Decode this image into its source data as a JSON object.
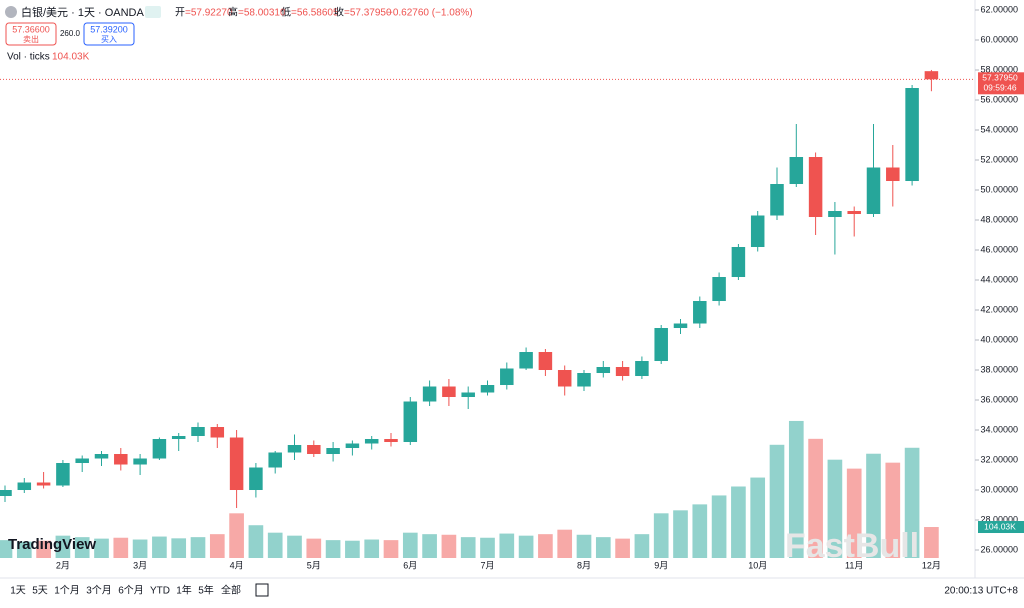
{
  "header": {
    "symbol": "白银/美元 · 1天 · OANDA",
    "ohlc": [
      {
        "label": "开",
        "value": "=57.92270"
      },
      {
        "label": "高",
        "value": "=58.00310"
      },
      {
        "label": "低",
        "value": "=56.58605"
      },
      {
        "label": "收",
        "value": "=57.37950"
      }
    ],
    "change": "−0.62760 (−1.08%)",
    "sell_price": "57.36600",
    "sell": "卖出",
    "spread": "260.0",
    "buy_price": "57.39200",
    "buy": "买入"
  },
  "chart_data": {
    "type": "candlestick",
    "categories": [
      null,
      null,
      null,
      "2月",
      null,
      null,
      null,
      "3月",
      null,
      null,
      null,
      null,
      "4月",
      null,
      null,
      null,
      "5月",
      null,
      null,
      null,
      null,
      "6月",
      null,
      null,
      null,
      "7月",
      null,
      null,
      null,
      null,
      "8月",
      null,
      null,
      null,
      "9月",
      null,
      null,
      null,
      null,
      "10月",
      null,
      null,
      null,
      null,
      "11月",
      null,
      null,
      null,
      "12月"
    ],
    "open": [
      29.6,
      30.0,
      30.5,
      30.3,
      31.8,
      32.1,
      32.4,
      31.7,
      32.1,
      33.4,
      33.6,
      34.2,
      33.5,
      30.0,
      31.5,
      32.5,
      33.0,
      32.4,
      32.8,
      33.1,
      33.4,
      33.2,
      35.9,
      36.9,
      36.2,
      36.5,
      37.0,
      38.1,
      39.2,
      38.0,
      36.9,
      37.8,
      38.2,
      37.6,
      38.6,
      40.8,
      41.1,
      42.6,
      44.2,
      46.2,
      48.3,
      50.4,
      52.2,
      48.2,
      48.6,
      48.4,
      51.5,
      50.6,
      57.9227
    ],
    "high": [
      30.3,
      30.8,
      31.2,
      32.0,
      32.3,
      32.6,
      32.8,
      32.4,
      33.5,
      33.8,
      34.5,
      34.4,
      34.0,
      31.8,
      32.6,
      33.7,
      33.3,
      33.2,
      33.3,
      33.6,
      33.8,
      36.2,
      37.3,
      37.4,
      36.9,
      37.3,
      38.5,
      39.5,
      39.4,
      38.3,
      38.0,
      38.6,
      38.6,
      38.9,
      41.0,
      41.4,
      42.9,
      44.5,
      46.4,
      48.6,
      51.5,
      54.4,
      52.5,
      49.2,
      48.9,
      54.4,
      53.0,
      57.0,
      58.0031
    ],
    "low": [
      29.2,
      29.8,
      30.1,
      30.2,
      31.2,
      31.6,
      31.3,
      31.0,
      32.0,
      32.6,
      33.2,
      32.8,
      28.8,
      29.5,
      31.1,
      32.0,
      32.2,
      31.9,
      32.3,
      32.7,
      32.9,
      33.0,
      35.6,
      35.6,
      35.4,
      36.3,
      36.7,
      38.0,
      37.6,
      36.3,
      36.6,
      37.5,
      37.3,
      37.4,
      38.4,
      40.4,
      40.8,
      42.3,
      44.0,
      45.9,
      48.0,
      50.2,
      47.0,
      45.7,
      46.9,
      48.2,
      48.9,
      50.3,
      56.58605
    ],
    "close": [
      30.0,
      30.5,
      30.3,
      31.8,
      32.1,
      32.4,
      31.7,
      32.1,
      33.4,
      33.6,
      34.2,
      33.5,
      30.0,
      31.5,
      32.5,
      33.0,
      32.4,
      32.8,
      33.1,
      33.4,
      33.2,
      35.9,
      36.9,
      36.2,
      36.5,
      37.0,
      38.1,
      39.2,
      38.0,
      36.9,
      37.8,
      38.2,
      37.6,
      38.6,
      40.8,
      41.1,
      42.6,
      44.2,
      46.2,
      48.3,
      50.4,
      52.2,
      48.2,
      48.6,
      48.4,
      51.5,
      50.6,
      56.8,
      57.3795
    ],
    "price_label": "57.37950",
    "countdown": "09:59:46",
    "up_color": "#26a69a",
    "down_color": "#ef5350",
    "ylim": [
      24.667,
      62.667
    ],
    "yticks": [
      {
        "value": 26,
        "label": "26.00000"
      },
      {
        "value": 28,
        "label": "28.00000"
      },
      {
        "value": 30,
        "label": "30.00000"
      },
      {
        "value": 32,
        "label": "32.00000"
      },
      {
        "value": 34,
        "label": "34.00000"
      },
      {
        "value": 36,
        "label": "36.00000"
      },
      {
        "value": 38,
        "label": "38.00000"
      },
      {
        "value": 40,
        "label": "40.00000"
      },
      {
        "value": 42,
        "label": "42.00000"
      },
      {
        "value": 44,
        "label": "44.00000"
      },
      {
        "value": 46,
        "label": "46.00000"
      },
      {
        "value": 48,
        "label": "48.00000"
      },
      {
        "value": 50,
        "label": "50.00000"
      },
      {
        "value": 52,
        "label": "52.00000"
      },
      {
        "value": 54,
        "label": "54.00000"
      },
      {
        "value": 56,
        "label": "56.00000"
      },
      {
        "value": 58,
        "label": "58.00000"
      },
      {
        "value": 60,
        "label": "60.00000"
      },
      {
        "value": 62,
        "label": "62.00000"
      }
    ],
    "grid": false,
    "volume": {
      "name": "Vol · ticks",
      "last_label": "104.03K",
      "ylim": [
        0,
        480000
      ],
      "values": [
        60000,
        55000,
        58000,
        75000,
        70000,
        65000,
        68000,
        62000,
        72000,
        66000,
        70000,
        80000,
        150000,
        110000,
        85000,
        75000,
        65000,
        60000,
        58000,
        62000,
        60000,
        85000,
        80000,
        78000,
        70000,
        68000,
        82000,
        75000,
        80000,
        95000,
        78000,
        70000,
        65000,
        80000,
        150000,
        160000,
        180000,
        210000,
        240000,
        270000,
        380000,
        460000,
        400000,
        330000,
        300000,
        350000,
        320000,
        370000,
        104030
      ]
    }
  },
  "toolbar": {
    "ranges": [
      "1天",
      "5天",
      "1个月",
      "3个月",
      "6个月",
      "YTD",
      "1年",
      "5年",
      "全部"
    ],
    "clock": "20:00:13 UTC+8"
  },
  "branding": {
    "logo": "TradingView",
    "watermark": "FastBull"
  }
}
